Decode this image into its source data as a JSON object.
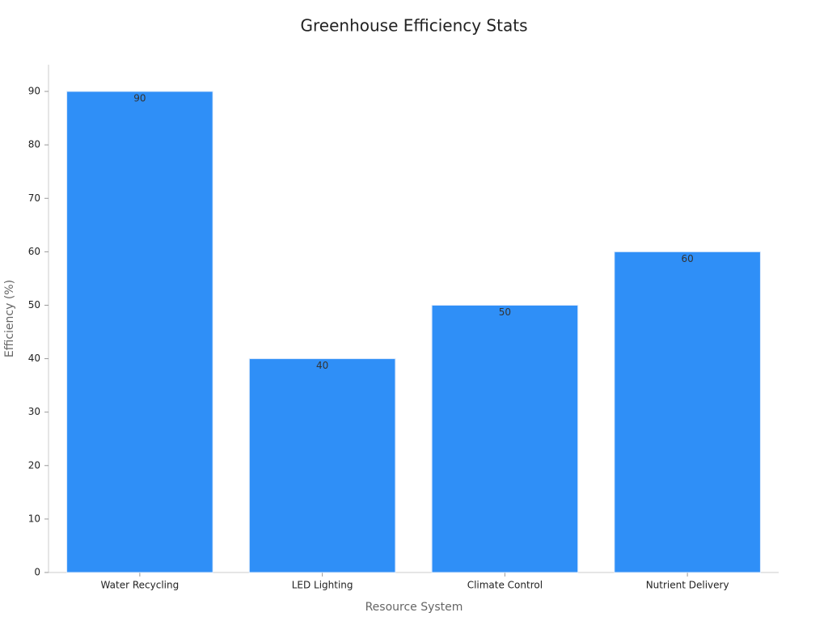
{
  "chart_data": {
    "type": "bar",
    "title": "Greenhouse Efficiency Stats",
    "x_label": "Resource System",
    "y_label": "Efficiency (%)",
    "categories": [
      "Water Recycling",
      "LED Lighting",
      "Climate Control",
      "Nutrient Delivery"
    ],
    "values": [
      90,
      40,
      50,
      60
    ],
    "color": "#2f8ff7",
    "ylim": [
      0,
      95
    ],
    "yticks": [
      0,
      10,
      20,
      30,
      40,
      50,
      60,
      70,
      80,
      90
    ],
    "grid": false
  }
}
